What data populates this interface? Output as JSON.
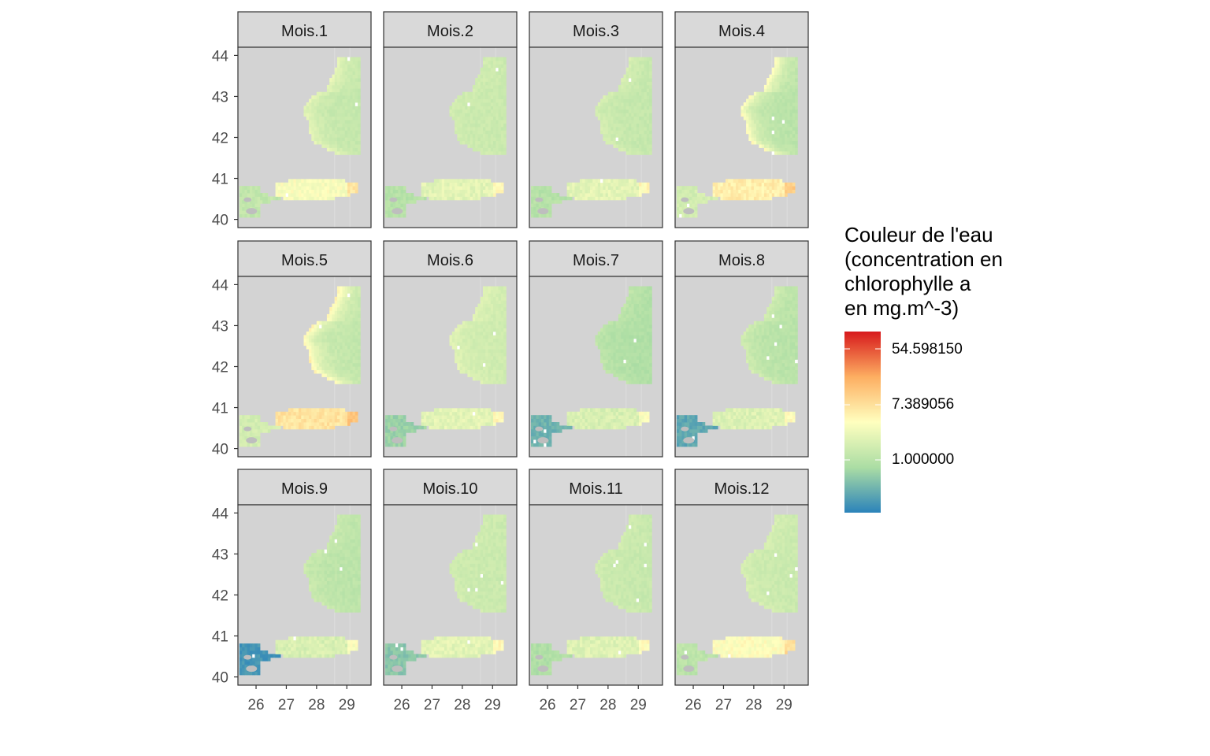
{
  "chart_data": {
    "type": "heatmap",
    "description_ylabel": "",
    "xlabel": "",
    "ylabel": "",
    "facets": [
      "Mois.1",
      "Mois.2",
      "Mois.3",
      "Mois.4",
      "Mois.5",
      "Mois.6",
      "Mois.7",
      "Mois.8",
      "Mois.9",
      "Mois.10",
      "Mois.11",
      "Mois.12"
    ],
    "x_ticks": [
      "26",
      "27",
      "28",
      "29"
    ],
    "x_tick_values": [
      26,
      27,
      28,
      29
    ],
    "y_ticks": [
      "40",
      "41",
      "42",
      "43",
      "44"
    ],
    "y_tick_values": [
      40,
      41,
      42,
      43,
      44
    ],
    "xlim": [
      25.4,
      29.8
    ],
    "ylim": [
      39.8,
      44.2
    ],
    "legend": {
      "title_lines": [
        "Couleur de l'eau",
        "(concentration en",
        "chlorophylle a",
        "en mg.m^-3)"
      ],
      "labels": [
        "54.598150",
        "7.389056",
        "1.000000"
      ],
      "label_values": [
        54.59815,
        7.389056,
        1.0
      ],
      "scale": "log",
      "palette": [
        "#2b83ba",
        "#abdda4",
        "#ffffbf",
        "#fdae61",
        "#d7191c"
      ],
      "position": "right"
    },
    "monthly_log_chl": {
      "open_sea": [
        0.35,
        0.45,
        0.35,
        0.15,
        0.3,
        0.55,
        0.0,
        0.15,
        0.2,
        0.45,
        0.4,
        0.45
      ],
      "coastal": [
        1.0,
        0.6,
        0.7,
        1.5,
        1.7,
        0.9,
        0.3,
        0.6,
        0.5,
        0.6,
        0.6,
        0.7
      ],
      "marmara": [
        1.3,
        0.9,
        0.9,
        1.7,
        1.9,
        0.9,
        0.7,
        0.8,
        0.7,
        0.9,
        0.8,
        1.4
      ],
      "aegean": [
        0.3,
        0.1,
        0.1,
        0.6,
        0.6,
        -0.3,
        -0.8,
        -1.0,
        -1.3,
        -0.5,
        0.0,
        0.2
      ]
    },
    "grid": false,
    "theme_colors": {
      "panel_background": "#d3d3d3",
      "strip_background": "#d9d9d9",
      "border": "#333333",
      "tick_text": "#4d4d4d",
      "gridline": "#e5e5e5",
      "missing_cell": "#ffffff",
      "island": "#bebebe"
    }
  }
}
